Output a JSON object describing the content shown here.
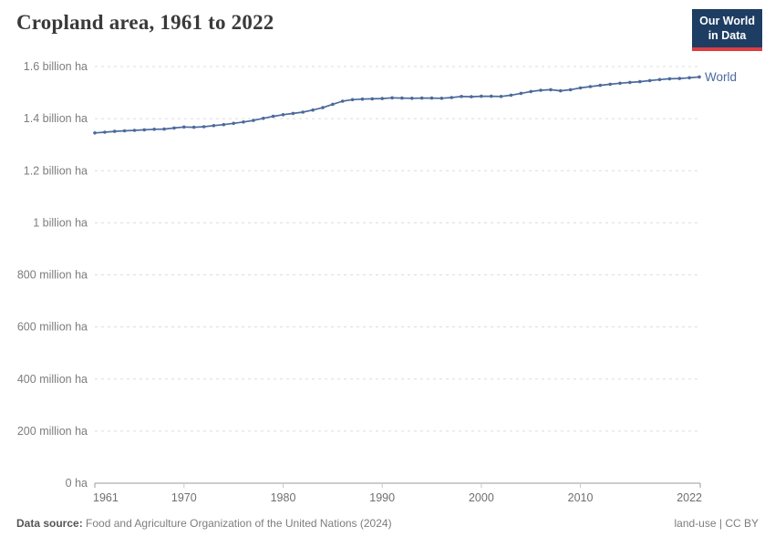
{
  "header": {
    "title": "Cropland area, 1961 to 2022",
    "logo": {
      "line1": "Our World",
      "line2": "in Data",
      "bg_color": "#1d3d63",
      "accent_color": "#dc3e42"
    }
  },
  "chart_data": {
    "type": "line",
    "title": "Cropland area, 1961 to 2022",
    "xlabel": "",
    "ylabel": "",
    "unit": "ha",
    "xlim": [
      1961,
      2022
    ],
    "ylim": [
      0,
      1.6
    ],
    "ylim_unit": "billion ha",
    "grid": true,
    "legend_position": "end-of-line",
    "x_ticks": [
      1961,
      1970,
      1980,
      1990,
      2000,
      2010,
      2022
    ],
    "y_ticks": [
      {
        "value": 0.0,
        "label": "0 ha"
      },
      {
        "value": 0.2,
        "label": "200 million ha"
      },
      {
        "value": 0.4,
        "label": "400 million ha"
      },
      {
        "value": 0.6,
        "label": "600 million ha"
      },
      {
        "value": 0.8,
        "label": "800 million ha"
      },
      {
        "value": 1.0,
        "label": "1 billion ha"
      },
      {
        "value": 1.2,
        "label": "1.2 billion ha"
      },
      {
        "value": 1.4,
        "label": "1.4 billion ha"
      },
      {
        "value": 1.6,
        "label": "1.6 billion ha"
      }
    ],
    "series": [
      {
        "name": "World",
        "color": "#4C6A9C",
        "years": [
          1961,
          1962,
          1963,
          1964,
          1965,
          1966,
          1967,
          1968,
          1969,
          1970,
          1971,
          1972,
          1973,
          1974,
          1975,
          1976,
          1977,
          1978,
          1979,
          1980,
          1981,
          1982,
          1983,
          1984,
          1985,
          1986,
          1987,
          1988,
          1989,
          1990,
          1991,
          1992,
          1993,
          1994,
          1995,
          1996,
          1997,
          1998,
          1999,
          2000,
          2001,
          2002,
          2003,
          2004,
          2005,
          2006,
          2007,
          2008,
          2009,
          2010,
          2011,
          2012,
          2013,
          2014,
          2015,
          2016,
          2017,
          2018,
          2019,
          2020,
          2021,
          2022
        ],
        "values_billion_ha": [
          1.345,
          1.348,
          1.351,
          1.353,
          1.355,
          1.357,
          1.359,
          1.36,
          1.364,
          1.368,
          1.367,
          1.369,
          1.373,
          1.377,
          1.382,
          1.387,
          1.393,
          1.401,
          1.409,
          1.415,
          1.42,
          1.425,
          1.433,
          1.442,
          1.455,
          1.467,
          1.473,
          1.475,
          1.476,
          1.477,
          1.48,
          1.479,
          1.478,
          1.479,
          1.479,
          1.478,
          1.481,
          1.485,
          1.484,
          1.486,
          1.486,
          1.485,
          1.49,
          1.497,
          1.504,
          1.509,
          1.511,
          1.507,
          1.511,
          1.518,
          1.523,
          1.528,
          1.532,
          1.536,
          1.539,
          1.542,
          1.546,
          1.55,
          1.553,
          1.554,
          1.557,
          1.56
        ]
      }
    ]
  },
  "footer": {
    "datasource_label": "Data source:",
    "datasource_text": "Food and Agriculture Organization of the United Nations (2024)",
    "license_note": "land-use | CC BY"
  }
}
